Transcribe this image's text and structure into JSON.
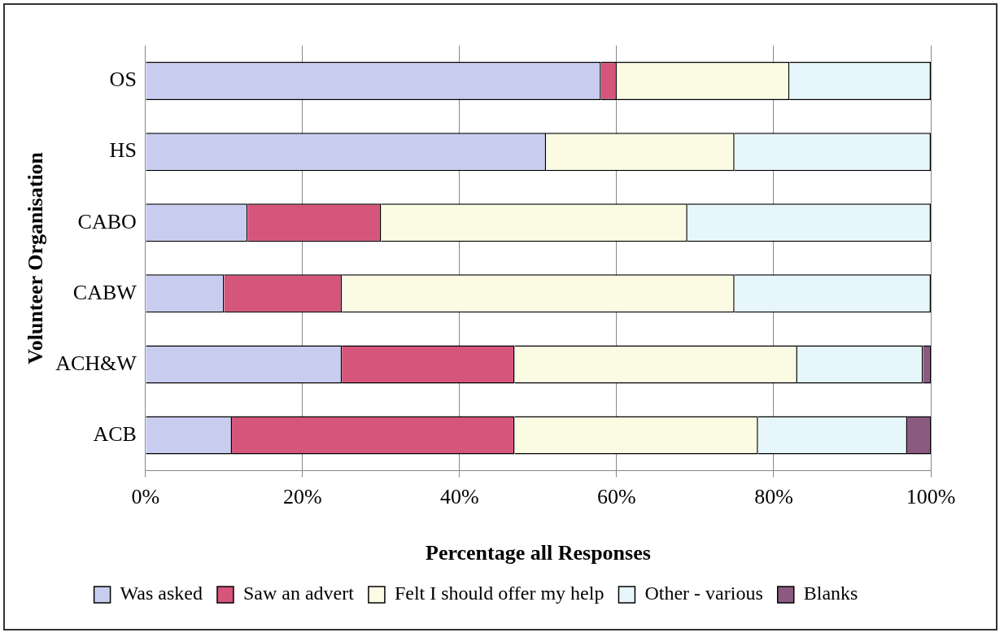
{
  "chart_data": {
    "type": "bar",
    "orientation": "horizontal",
    "stacked": true,
    "xlabel": "Percentage all Responses",
    "ylabel": "Volunteer Organisation",
    "categories": [
      "OS",
      "HS",
      "CABO",
      "CABW",
      "ACH&W",
      "ACB"
    ],
    "series": [
      {
        "name": "Was asked",
        "color": "#c8cdf0",
        "values": [
          58,
          51,
          13,
          10,
          25,
          11
        ]
      },
      {
        "name": "Saw an advert",
        "color": "#d6557a",
        "values": [
          2,
          0,
          17,
          15,
          22,
          36
        ]
      },
      {
        "name": "Felt I should offer my help",
        "color": "#fbfbe4",
        "values": [
          22,
          24,
          39,
          50,
          36,
          31
        ]
      },
      {
        "name": "Other - various",
        "color": "#e6f6fa",
        "values": [
          18,
          25,
          31,
          25,
          16,
          19
        ]
      },
      {
        "name": "Blanks",
        "color": "#8b5a80",
        "values": [
          0,
          0,
          0,
          0,
          1,
          3
        ]
      }
    ],
    "xlim": [
      0,
      100
    ],
    "xticks": [
      {
        "value": 0,
        "label": "0%"
      },
      {
        "value": 20,
        "label": "20%"
      },
      {
        "value": 40,
        "label": "40%"
      },
      {
        "value": 60,
        "label": "60%"
      },
      {
        "value": 80,
        "label": "80%"
      },
      {
        "value": 100,
        "label": "100%"
      }
    ],
    "grid": "x",
    "legend": "bottom"
  }
}
